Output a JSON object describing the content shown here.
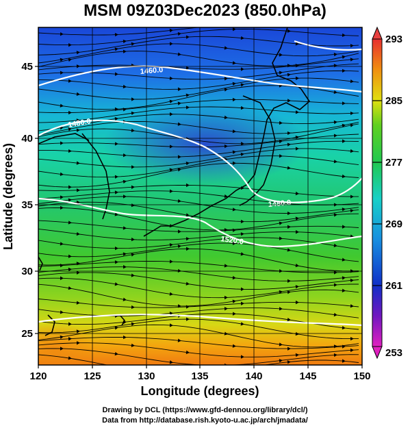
{
  "title": "MSM 09Z03Dec2023 (850.0hPa)",
  "map": {
    "lon_ticks": [
      "120",
      "125",
      "130",
      "135",
      "140",
      "145",
      "150"
    ],
    "lat_ticks": [
      "25",
      "30",
      "35",
      "40",
      "45"
    ],
    "lon_range": [
      120,
      150
    ],
    "lat_range": [
      22.4,
      47.6
    ],
    "xlabel": "Longitude (degrees)",
    "ylabel": "Latitude  (degrees)",
    "contour_labels": [
      "1460.0",
      "1480.0",
      "1480.0",
      "1520.0"
    ],
    "field": "temperature shading with geopotential height contours and streamlines"
  },
  "colorbar": {
    "tick_labels": [
      "293",
      "285",
      "277",
      "269",
      "261",
      "253"
    ],
    "range": [
      253,
      293
    ]
  },
  "credits": {
    "line1": "Drawing by DCL (https://www.gfd-dennou.org/library/dcl/)",
    "line2": "Data from http://database.rish.kyoto-u.ac.jp/arch/jmadata/"
  }
}
